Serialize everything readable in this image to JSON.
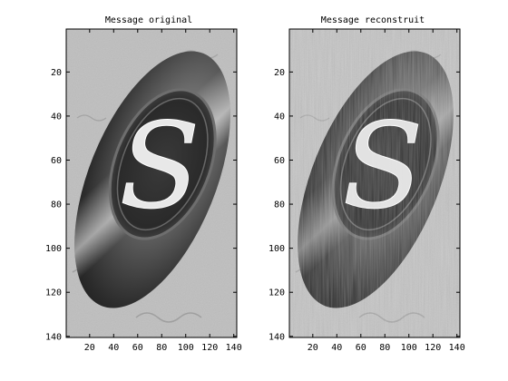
{
  "panels": [
    {
      "id": "original",
      "title": "Message original",
      "variant": "original",
      "x_ticks": [
        20,
        40,
        60,
        80,
        100,
        120,
        140
      ],
      "y_ticks": [
        20,
        40,
        60,
        80,
        100,
        120,
        140
      ],
      "x_range": [
        0.5,
        142.5
      ],
      "y_range": [
        0.5,
        140.5
      ]
    },
    {
      "id": "reconstructed",
      "title": "Message reconstruit",
      "variant": "reconstructed",
      "x_ticks": [
        20,
        40,
        60,
        80,
        100,
        120,
        140
      ],
      "y_ticks": [
        20,
        40,
        60,
        80,
        100,
        120,
        140
      ],
      "x_range": [
        0.5,
        142.5
      ],
      "y_range": [
        0.5,
        140.5
      ]
    }
  ],
  "image_content": {
    "subject": "wax-seal-with-letter-s",
    "letter": "S",
    "colormap": "gray"
  }
}
